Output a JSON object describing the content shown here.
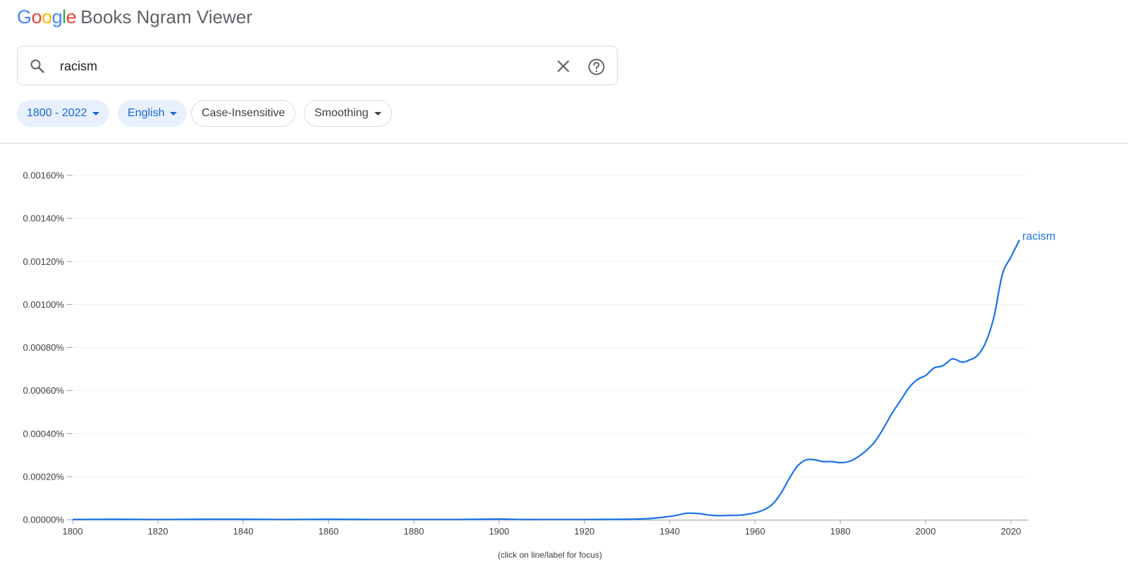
{
  "header": {
    "logo_letters": [
      {
        "char": "G",
        "color": "#4285F4"
      },
      {
        "char": "o",
        "color": "#EA4335"
      },
      {
        "char": "o",
        "color": "#FBBC05"
      },
      {
        "char": "g",
        "color": "#4285F4"
      },
      {
        "char": "l",
        "color": "#34A853"
      },
      {
        "char": "e",
        "color": "#EA4335"
      }
    ],
    "title": "Books Ngram Viewer"
  },
  "search": {
    "value": "racism",
    "icons": {
      "search": "search-icon",
      "clear": "close-icon",
      "help": "help-circle-icon"
    }
  },
  "filters": {
    "year_range": "1800 - 2022",
    "corpus": "English",
    "case": "Case-Insensitive",
    "smoothing": "Smoothing"
  },
  "colors": {
    "accent": "#1967d2",
    "chip_fill": "#e8f0fe",
    "series_line": "#1a73e8"
  },
  "chart_data": {
    "type": "line",
    "xlim": [
      1800,
      2022
    ],
    "ylim": [
      0,
      0.0016
    ],
    "y_unit": "%",
    "x_ticks": [
      1800,
      1820,
      1840,
      1860,
      1880,
      1900,
      1920,
      1940,
      1960,
      1980,
      2000,
      2020
    ],
    "y_ticks": [
      "0.00000%",
      "0.00020%",
      "0.00040%",
      "0.00060%",
      "0.00080%",
      "0.00100%",
      "0.00120%",
      "0.00140%",
      "0.00160%"
    ],
    "y_tick_values": [
      0,
      0.0002,
      0.0004,
      0.0006,
      0.0008,
      0.001,
      0.0012,
      0.0014,
      0.0016
    ],
    "grid": "horizontal",
    "note": "(click on line/label for focus)",
    "series": [
      {
        "name": "racism",
        "x": [
          1800,
          1810,
          1820,
          1830,
          1840,
          1850,
          1860,
          1870,
          1880,
          1890,
          1900,
          1905,
          1910,
          1920,
          1930,
          1935,
          1940,
          1942,
          1944,
          1947,
          1949,
          1951,
          1954,
          1957,
          1960,
          1962,
          1964,
          1966,
          1968,
          1970,
          1972,
          1974,
          1976,
          1978,
          1980,
          1982,
          1984,
          1986,
          1988,
          1990,
          1992,
          1994,
          1996,
          1998,
          2000,
          2002,
          2004,
          2006,
          2007,
          2008,
          2009,
          2010,
          2012,
          2014,
          2016,
          2018,
          2020,
          2022
        ],
        "y": [
          1e-06,
          2e-06,
          1e-06,
          2e-06,
          2e-06,
          1e-06,
          2e-06,
          1e-06,
          1e-06,
          1e-06,
          3e-06,
          1e-06,
          1e-06,
          1e-06,
          2e-06,
          5e-06,
          1.5e-05,
          2.2e-05,
          3e-05,
          2.8e-05,
          2.2e-05,
          1.9e-05,
          2e-05,
          2.2e-05,
          3.2e-05,
          4.5e-05,
          7e-05,
          0.00012,
          0.00019,
          0.00025,
          0.000278,
          0.000278,
          0.00027,
          0.00027,
          0.000265,
          0.00027,
          0.00029,
          0.00032,
          0.00036,
          0.00042,
          0.00049,
          0.00055,
          0.00061,
          0.00065,
          0.00067,
          0.000705,
          0.000715,
          0.000745,
          0.000745,
          0.000735,
          0.000732,
          0.00074,
          0.00076,
          0.00082,
          0.00094,
          0.00114,
          0.00122,
          0.0013
        ]
      }
    ]
  }
}
